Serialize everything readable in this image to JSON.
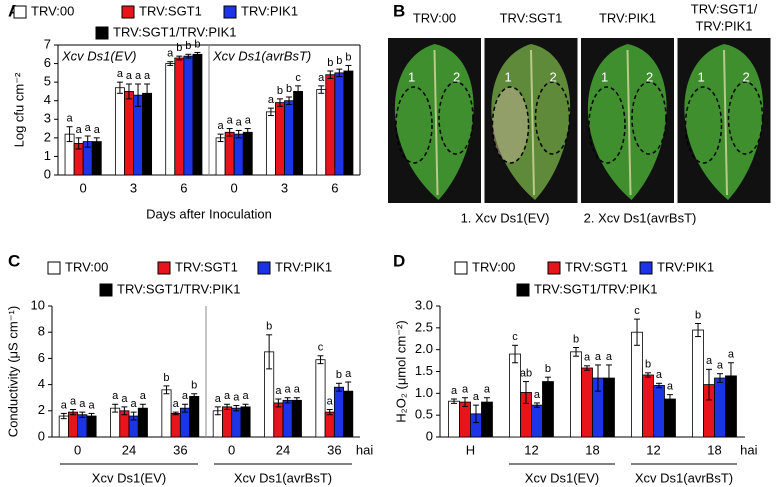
{
  "chart_data": [
    {
      "panel": "A",
      "type": "bar",
      "ylabel": "Log cfu cm⁻²",
      "xlabel": "Days after Inoculation",
      "ylim": [
        0,
        7
      ],
      "yticks": [
        0,
        1,
        2,
        3,
        4,
        5,
        6,
        7
      ],
      "frame": "box",
      "group_title_position": "top",
      "group_divider": true,
      "series": [
        {
          "name": "TRV:00",
          "color": "#ffffff"
        },
        {
          "name": "TRV:SGT1",
          "color": "#e8141b"
        },
        {
          "name": "TRV:PIK1",
          "color": "#1c33e6"
        },
        {
          "name": "TRV:SGT1/TRV:PIK1",
          "color": "#000000"
        }
      ],
      "groups": [
        {
          "title": "Xcv Ds1(EV)",
          "categories": [
            "0",
            "3",
            "6"
          ],
          "series": [
            {
              "values": [
                2.2,
                4.7,
                6.0
              ],
              "errors": [
                0.4,
                0.3,
                0.1
              ],
              "letters": [
                "a",
                "a",
                "a"
              ]
            },
            {
              "values": [
                1.7,
                4.5,
                6.3
              ],
              "errors": [
                0.3,
                0.4,
                0.1
              ],
              "letters": [
                "a",
                "a",
                "b"
              ]
            },
            {
              "values": [
                1.8,
                4.3,
                6.4
              ],
              "errors": [
                0.3,
                0.6,
                0.1
              ],
              "letters": [
                "a",
                "a",
                "b"
              ]
            },
            {
              "values": [
                1.8,
                4.4,
                6.5
              ],
              "errors": [
                0.2,
                0.5,
                0.1
              ],
              "letters": [
                "a",
                "a",
                "b"
              ]
            }
          ]
        },
        {
          "title": "Xcv Ds1(avrBsT)",
          "categories": [
            "0",
            "3",
            "6"
          ],
          "series": [
            {
              "values": [
                2.0,
                3.4,
                4.6
              ],
              "errors": [
                0.2,
                0.2,
                0.2
              ],
              "letters": [
                "a",
                "a",
                "a"
              ]
            },
            {
              "values": [
                2.3,
                3.9,
                5.4
              ],
              "errors": [
                0.2,
                0.2,
                0.2
              ],
              "letters": [
                "a",
                "b",
                "b"
              ]
            },
            {
              "values": [
                2.2,
                4.0,
                5.5
              ],
              "errors": [
                0.2,
                0.2,
                0.2
              ],
              "letters": [
                "a",
                "b",
                "b"
              ]
            },
            {
              "values": [
                2.3,
                4.5,
                5.6
              ],
              "errors": [
                0.2,
                0.3,
                0.3
              ],
              "letters": [
                "a",
                "c",
                "b"
              ]
            }
          ]
        }
      ]
    },
    {
      "panel": "C",
      "type": "bar",
      "ylabel": "Conductivity (μS cm⁻¹)",
      "unit_label": "hai",
      "ylim": [
        0,
        10
      ],
      "yticks": [
        0,
        2,
        4,
        6,
        8,
        10
      ],
      "frame": "open",
      "group_title_position": "bottom",
      "group_divider": true,
      "series": [
        {
          "name": "TRV:00",
          "color": "#ffffff"
        },
        {
          "name": "TRV:SGT1",
          "color": "#e8141b"
        },
        {
          "name": "TRV:PIK1",
          "color": "#1c33e6"
        },
        {
          "name": "TRV:SGT1/TRV:PIK1",
          "color": "#000000"
        }
      ],
      "groups": [
        {
          "title": "Xcv Ds1(EV)",
          "categories": [
            "0",
            "24",
            "36"
          ],
          "series": [
            {
              "values": [
                1.6,
                2.2,
                3.6
              ],
              "errors": [
                0.2,
                0.3,
                0.3
              ],
              "letters": [
                "a",
                "a",
                "b"
              ]
            },
            {
              "values": [
                1.9,
                2.0,
                1.8
              ],
              "errors": [
                0.2,
                0.3,
                0.1
              ],
              "letters": [
                "a",
                "a",
                "a"
              ]
            },
            {
              "values": [
                1.7,
                1.6,
                2.2
              ],
              "errors": [
                0.2,
                0.3,
                0.3
              ],
              "letters": [
                "a",
                "a",
                "a"
              ]
            },
            {
              "values": [
                1.6,
                2.2,
                3.1
              ],
              "errors": [
                0.2,
                0.3,
                0.2
              ],
              "letters": [
                "a",
                "a",
                "b"
              ]
            }
          ]
        },
        {
          "title": "Xcv Ds1(avrBsT)",
          "categories": [
            "0",
            "24",
            "36"
          ],
          "series": [
            {
              "values": [
                2.0,
                6.5,
                5.9
              ],
              "errors": [
                0.3,
                1.3,
                0.3
              ],
              "letters": [
                "a",
                "b",
                "c"
              ]
            },
            {
              "values": [
                2.3,
                2.6,
                1.9
              ],
              "errors": [
                0.2,
                0.3,
                0.2
              ],
              "letters": [
                "a",
                "a",
                "a"
              ]
            },
            {
              "values": [
                2.2,
                2.8,
                3.8
              ],
              "errors": [
                0.2,
                0.2,
                0.3
              ],
              "letters": [
                "a",
                "a",
                "b"
              ]
            },
            {
              "values": [
                2.3,
                2.8,
                3.5
              ],
              "errors": [
                0.2,
                0.2,
                0.7
              ],
              "letters": [
                "a",
                "a",
                "a"
              ]
            }
          ]
        }
      ]
    },
    {
      "panel": "D",
      "type": "bar",
      "ylabel": "H₂O₂ (μmol cm⁻²)",
      "unit_label": "hai",
      "ylim": [
        0,
        3
      ],
      "yticks": [
        0,
        0.5,
        {
          "value": 1,
          "label": "1.0"
        },
        1.5,
        {
          "value": 2,
          "label": "2.0"
        },
        2.5,
        {
          "value": 3,
          "label": "3.0"
        }
      ],
      "frame": "open",
      "group_title_position": "bottom",
      "group_divider": false,
      "series": [
        {
          "name": "TRV:00",
          "color": "#ffffff"
        },
        {
          "name": "TRV:SGT1",
          "color": "#e8141b"
        },
        {
          "name": "TRV:PIK1",
          "color": "#1c33e6"
        },
        {
          "name": "TRV:SGT1/TRV:PIK1",
          "color": "#000000"
        }
      ],
      "groups": [
        {
          "categories": [
            "H"
          ],
          "series": [
            {
              "values": [
                0.82
              ],
              "errors": [
                0.05
              ],
              "letters": [
                "a"
              ]
            },
            {
              "values": [
                0.8
              ],
              "errors": [
                0.1
              ],
              "letters": [
                "a"
              ]
            },
            {
              "values": [
                0.53
              ],
              "errors": [
                0.2
              ],
              "letters": [
                "a"
              ]
            },
            {
              "values": [
                0.8
              ],
              "errors": [
                0.1
              ],
              "letters": [
                "a"
              ]
            }
          ]
        },
        {
          "title": "Xcv Ds1(EV)",
          "categories": [
            "12",
            "18"
          ],
          "series": [
            {
              "values": [
                1.9,
                1.95
              ],
              "errors": [
                0.2,
                0.1
              ],
              "letters": [
                "c",
                "b"
              ]
            },
            {
              "values": [
                1.02,
                1.58
              ],
              "errors": [
                0.25,
                0.05
              ],
              "letters": [
                "ab",
                "a"
              ]
            },
            {
              "values": [
                0.73,
                1.35
              ],
              "errors": [
                0.05,
                0.3
              ],
              "letters": [
                "a",
                "a"
              ]
            },
            {
              "values": [
                1.27,
                1.35
              ],
              "errors": [
                0.1,
                0.3
              ],
              "letters": [
                "b",
                "a"
              ]
            }
          ]
        },
        {
          "title": "Xcv Ds1(avrBsT)",
          "categories": [
            "12",
            "18"
          ],
          "series": [
            {
              "values": [
                2.4,
                2.45
              ],
              "errors": [
                0.3,
                0.15
              ],
              "letters": [
                "c",
                "b"
              ]
            },
            {
              "values": [
                1.42,
                1.2
              ],
              "errors": [
                0.05,
                0.35
              ],
              "letters": [
                "b",
                "a"
              ]
            },
            {
              "values": [
                1.18,
                1.35
              ],
              "errors": [
                0.05,
                0.1
              ],
              "letters": [
                "a",
                "a"
              ]
            },
            {
              "values": [
                0.87,
                1.4
              ],
              "errors": [
                0.1,
                0.3
              ],
              "letters": [
                "a",
                "a"
              ]
            }
          ]
        }
      ]
    }
  ],
  "panel_b": {
    "label": "B",
    "columns": [
      [
        "TRV:00"
      ],
      [
        "TRV:SGT1"
      ],
      [
        "TRV:PIK1"
      ],
      [
        "TRV:SGT1/",
        "TRV:PIK1"
      ]
    ],
    "regions": [
      "1",
      "2"
    ],
    "captions": [
      "1. Xcv Ds1(EV)",
      "2. Xcv Ds1(avrBsT)"
    ]
  }
}
